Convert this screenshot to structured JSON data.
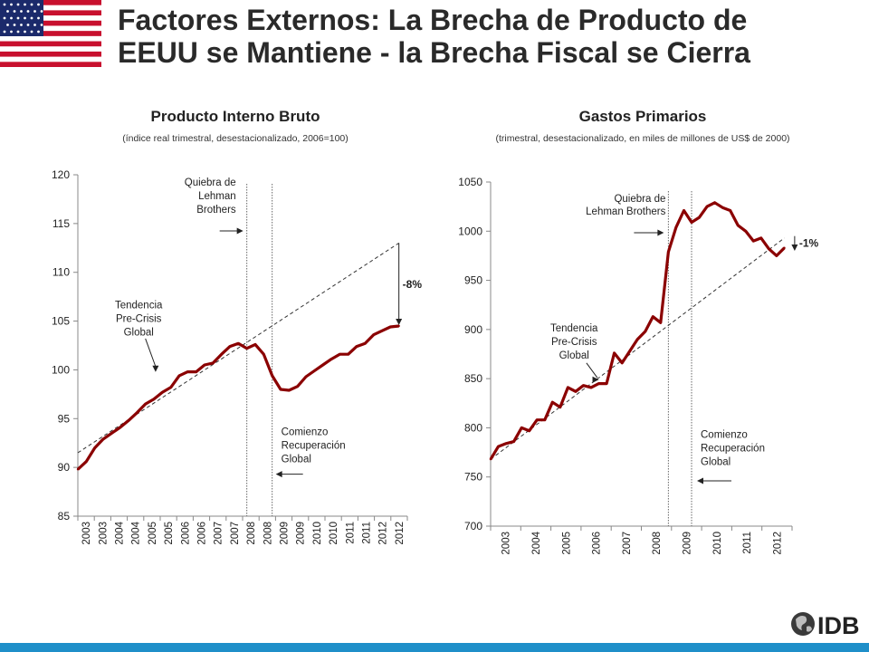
{
  "page": {
    "title_line1": "Factores Externos: La Brecha de Producto de",
    "title_line2": "EEUU se Mantiene - la Brecha Fiscal se Cierra",
    "logo_text": "IDB"
  },
  "colors": {
    "series": "#8b0000",
    "bar": "#1f8fc9",
    "grid_axis": "#888888"
  },
  "chart_data": [
    {
      "type": "line",
      "title": "Producto Interno Bruto",
      "subtitle": "(índice real trimestral, desestacionalizado, 2006=100)",
      "ylim": [
        85,
        120
      ],
      "yticks": [
        85,
        90,
        95,
        100,
        105,
        110,
        115,
        120
      ],
      "xlabels": [
        "2003",
        "2003",
        "2004",
        "2004",
        "2005",
        "2005",
        "2006",
        "2006",
        "2007",
        "2007",
        "2008",
        "2008",
        "2009",
        "2009",
        "2010",
        "2010",
        "2011",
        "2011",
        "2012",
        "2012"
      ],
      "x_start": 2003.0,
      "x_end": 2012.75,
      "series": [
        {
          "x": [
            2003.0,
            2003.25,
            2003.5,
            2003.75,
            2004.0,
            2004.25,
            2004.5,
            2004.75,
            2005.0,
            2005.25,
            2005.5,
            2005.75,
            2006.0,
            2006.25,
            2006.5,
            2006.75,
            2007.0,
            2007.25,
            2007.5,
            2007.75,
            2008.0,
            2008.25,
            2008.5,
            2008.75,
            2009.0,
            2009.25,
            2009.5,
            2009.75,
            2010.0,
            2010.25,
            2010.5,
            2010.75,
            2011.0,
            2011.25,
            2011.5,
            2011.75,
            2012.0,
            2012.25,
            2012.5
          ],
          "values": [
            89.8,
            90.6,
            92.0,
            92.9,
            93.5,
            94.1,
            94.8,
            95.6,
            96.5,
            97.0,
            97.7,
            98.2,
            99.4,
            99.8,
            99.8,
            100.5,
            100.7,
            101.6,
            102.4,
            102.7,
            102.2,
            102.6,
            101.6,
            99.4,
            98.0,
            97.9,
            98.3,
            99.3,
            99.9,
            100.5,
            101.1,
            101.6,
            101.6,
            102.4,
            102.7,
            103.6,
            104.0,
            104.4,
            104.5
          ]
        }
      ],
      "trend": {
        "x": [
          2003.0,
          2012.5
        ],
        "values": [
          91.5,
          113.0
        ]
      },
      "vlines": [
        2008.0,
        2008.75
      ],
      "annotations": {
        "lehman": [
          "Quiebra de",
          "Lehman",
          "Brothers"
        ],
        "trend": [
          "Tendencia",
          "Pre-Crisis",
          "Global"
        ],
        "recovery": [
          "Comienzo",
          "Recuperación",
          "Global"
        ],
        "gap": "-8%"
      }
    },
    {
      "type": "line",
      "title": "Gastos Primarios",
      "subtitle": "(trimestral, desestacionalizado, en miles de millones de US$ de 2000)",
      "ylim": [
        700,
        1050
      ],
      "yticks": [
        700,
        750,
        800,
        850,
        900,
        950,
        1000,
        1050
      ],
      "xlabels": [
        "2003",
        "2004",
        "2005",
        "2006",
        "2007",
        "2008",
        "2009",
        "2010",
        "2011",
        "2012"
      ],
      "x_start": 2003.0,
      "x_end": 2012.75,
      "series": [
        {
          "x": [
            2003.0,
            2003.25,
            2003.5,
            2003.75,
            2004.0,
            2004.25,
            2004.5,
            2004.75,
            2005.0,
            2005.25,
            2005.5,
            2005.75,
            2006.0,
            2006.25,
            2006.5,
            2006.75,
            2007.0,
            2007.25,
            2007.5,
            2007.75,
            2008.0,
            2008.25,
            2008.5,
            2008.75,
            2009.0,
            2009.25,
            2009.5,
            2009.75,
            2010.0,
            2010.25,
            2010.5,
            2010.75,
            2011.0,
            2011.25,
            2011.5,
            2011.75,
            2012.0,
            2012.25,
            2012.5
          ],
          "values": [
            768,
            781,
            784,
            786,
            800,
            797,
            808,
            808,
            826,
            821,
            841,
            837,
            843,
            841,
            845,
            845,
            876,
            866,
            878,
            890,
            898,
            913,
            907,
            979,
            1004,
            1021,
            1009,
            1014,
            1025,
            1029,
            1024,
            1021,
            1006,
            1000,
            990,
            993,
            982,
            975,
            983
          ]
        }
      ],
      "trend": {
        "x": [
          2003.0,
          2012.5
        ],
        "values": [
          768,
          993
        ]
      },
      "vlines": [
        2008.75,
        2009.5
      ],
      "annotations": {
        "lehman": [
          "Quiebra de",
          "Lehman Brothers"
        ],
        "trend": [
          "Tendencia",
          "Pre-Crisis",
          "Global"
        ],
        "recovery": [
          "Comienzo",
          "Recuperación",
          "Global"
        ],
        "gap": "-1%"
      }
    }
  ]
}
